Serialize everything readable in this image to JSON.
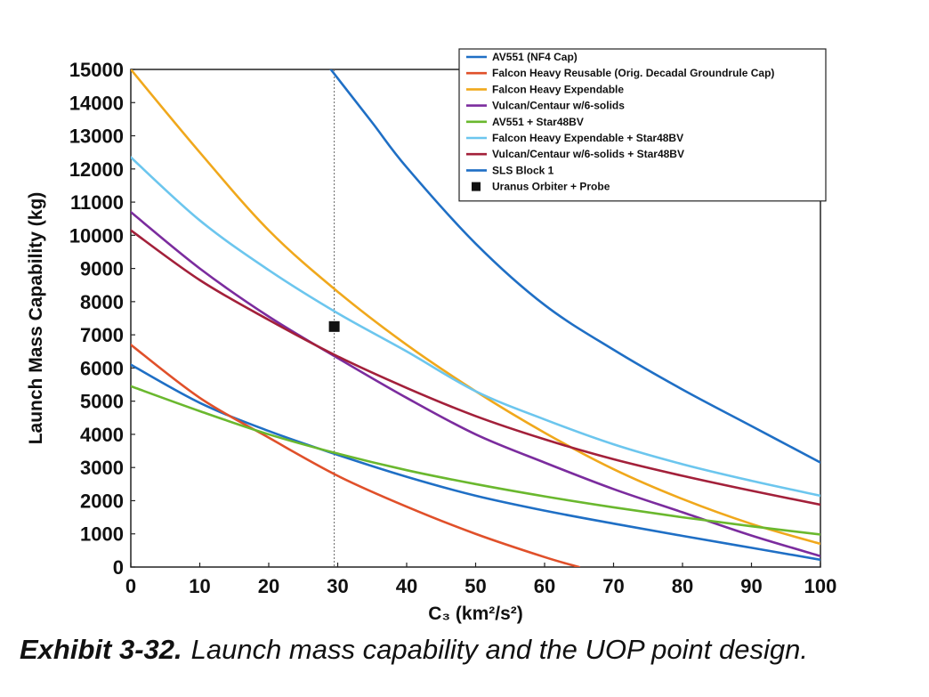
{
  "caption": {
    "label": "Exhibit 3-32.",
    "text": "Launch mass capability and the UOP point design."
  },
  "chart_data": {
    "type": "line",
    "title": "",
    "xlabel": "C₃ (km²/s²)",
    "ylabel": "Launch Mass Capability (kg)",
    "xlim": [
      0,
      100
    ],
    "ylim": [
      0,
      15000
    ],
    "xticks": [
      0,
      10,
      20,
      30,
      40,
      50,
      60,
      70,
      80,
      90,
      100
    ],
    "yticks": [
      0,
      1000,
      2000,
      3000,
      4000,
      5000,
      6000,
      7000,
      8000,
      9000,
      10000,
      11000,
      12000,
      13000,
      14000,
      15000
    ],
    "grid": false,
    "legend_position": "top-right",
    "reference_line": {
      "x": 29.5,
      "style": "dotted"
    },
    "series": [
      {
        "name": "AV551 (NF4 Cap)",
        "color": "#1f6fc5",
        "x": [
          0,
          10,
          20,
          30,
          40,
          50,
          60,
          70,
          80,
          90,
          100
        ],
        "y": [
          6100,
          4950,
          4100,
          3380,
          2720,
          2150,
          1700,
          1310,
          940,
          580,
          220
        ]
      },
      {
        "name": "Falcon Heavy Reusable (Orig. Decadal Groundrule Cap)",
        "color": "#e0502a",
        "x": [
          0,
          10,
          20,
          30,
          40,
          50,
          60,
          65
        ],
        "y": [
          6700,
          5100,
          3900,
          2750,
          1820,
          1000,
          300,
          0
        ]
      },
      {
        "name": "Falcon Heavy Expendable",
        "color": "#f0a81c",
        "x": [
          0,
          10,
          20,
          30,
          40,
          50,
          60,
          70,
          80,
          90,
          100
        ],
        "y": [
          15000,
          12500,
          10150,
          8300,
          6700,
          5300,
          4050,
          2950,
          2050,
          1300,
          700
        ]
      },
      {
        "name": "Vulcan/Centaur w/6-solids",
        "color": "#7b2c9e",
        "x": [
          0,
          10,
          20,
          30,
          40,
          50,
          60,
          70,
          80,
          90,
          100
        ],
        "y": [
          10700,
          9000,
          7550,
          6300,
          5100,
          4000,
          3150,
          2350,
          1650,
          950,
          330
        ]
      },
      {
        "name": "AV551 + Star48BV",
        "color": "#6ab82e",
        "x": [
          0,
          10,
          20,
          30,
          40,
          50,
          60,
          70,
          80,
          90,
          100
        ],
        "y": [
          5450,
          4700,
          4000,
          3420,
          2920,
          2500,
          2130,
          1800,
          1500,
          1230,
          980
        ]
      },
      {
        "name": "Falcon Heavy Expendable + Star48BV",
        "color": "#6cc6ee",
        "x": [
          0,
          10,
          20,
          30,
          40,
          50,
          60,
          70,
          80,
          90,
          100
        ],
        "y": [
          12350,
          10450,
          8950,
          7650,
          6500,
          5300,
          4450,
          3700,
          3100,
          2600,
          2150
        ]
      },
      {
        "name": "Vulcan/Centaur w/6-solids + Star48BV",
        "color": "#a3203a",
        "x": [
          0,
          10,
          20,
          30,
          40,
          50,
          60,
          70,
          80,
          90,
          100
        ],
        "y": [
          10150,
          8650,
          7450,
          6350,
          5400,
          4550,
          3850,
          3250,
          2750,
          2300,
          1880
        ]
      },
      {
        "name": "SLS Block 1",
        "color": "#1f6fc5",
        "x": [
          29,
          35,
          40,
          50,
          60,
          70,
          80,
          90,
          100
        ],
        "y": [
          15000,
          13400,
          12050,
          9750,
          7900,
          6550,
          5350,
          4250,
          3150
        ]
      }
    ],
    "points": [
      {
        "name": "Uranus Orbiter + Probe",
        "x": 29.5,
        "y": 7250,
        "marker": "square",
        "color": "#111111"
      }
    ]
  }
}
